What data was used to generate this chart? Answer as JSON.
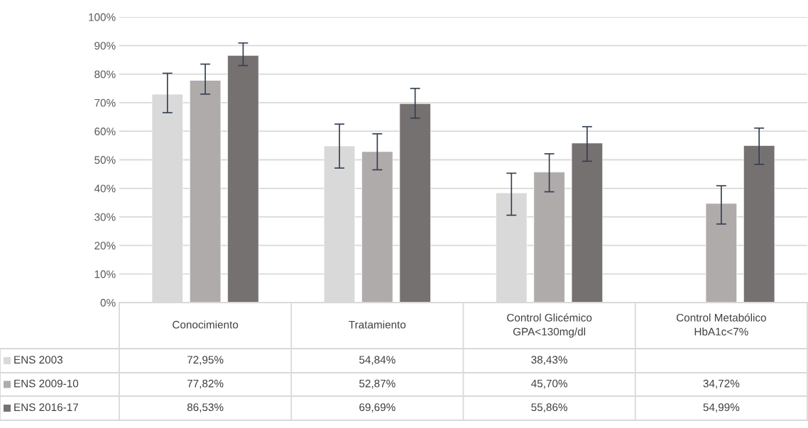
{
  "chart_data": {
    "type": "bar",
    "categories": [
      "Conocimiento",
      "Tratamiento",
      "Control Glicémico\nGPA<130mg/dl",
      "Control Metabólico\nHbA1c<7%"
    ],
    "series": [
      {
        "name": "ENS 2003",
        "color": "#d9d9d9",
        "values": [
          72.95,
          54.84,
          38.43,
          null
        ],
        "value_labels": [
          "72,95%",
          "54,84%",
          "38,43%",
          null
        ],
        "errors": [
          [
            66.5,
            80.3
          ],
          [
            47.1,
            62.5
          ],
          [
            30.6,
            45.3
          ],
          null
        ]
      },
      {
        "name": "ENS 2009-10",
        "color": "#afabab",
        "values": [
          77.82,
          52.87,
          45.7,
          34.72
        ],
        "value_labels": [
          "77,82%",
          "52,87%",
          "45,70%",
          "34,72%"
        ],
        "errors": [
          [
            73.0,
            83.5
          ],
          [
            46.5,
            59.1
          ],
          [
            38.8,
            52.1
          ],
          [
            27.5,
            40.9
          ]
        ]
      },
      {
        "name": "ENS 2016-17",
        "color": "#767171",
        "values": [
          86.53,
          69.69,
          55.86,
          54.99
        ],
        "value_labels": [
          "86,53%",
          "69,69%",
          "55,86%",
          "54,99%"
        ],
        "errors": [
          [
            83.0,
            90.9
          ],
          [
            64.6,
            75.0
          ],
          [
            49.5,
            61.6
          ],
          [
            48.4,
            61.1
          ]
        ]
      }
    ],
    "ylim": [
      0,
      100
    ],
    "yticks": [
      {
        "value": 0,
        "label": "0%"
      },
      {
        "value": 10,
        "label": "10%"
      },
      {
        "value": 20,
        "label": "20%"
      },
      {
        "value": 30,
        "label": "30%"
      },
      {
        "value": 40,
        "label": "40%"
      },
      {
        "value": 50,
        "label": "50%"
      },
      {
        "value": 60,
        "label": "60%"
      },
      {
        "value": 70,
        "label": "70%"
      },
      {
        "value": 80,
        "label": "80%"
      },
      {
        "value": 90,
        "label": "90%"
      },
      {
        "value": 100,
        "label": "100%"
      }
    ],
    "grid": "y",
    "legend": "bottom"
  }
}
